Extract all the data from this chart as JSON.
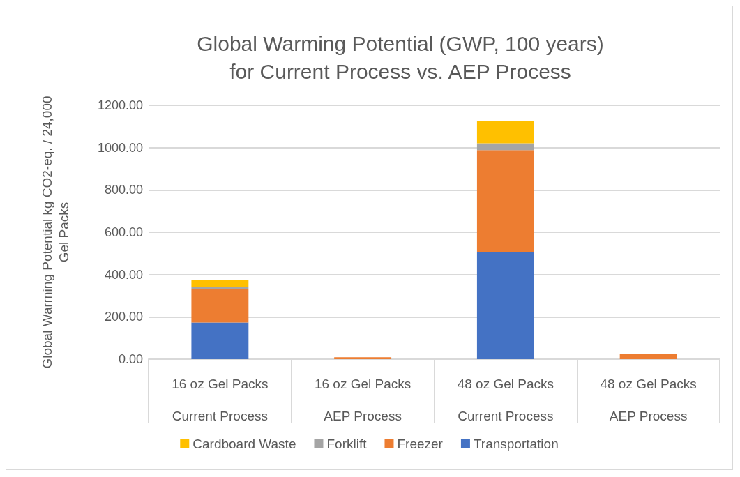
{
  "chart_data": {
    "type": "bar",
    "title": "Global Warming Potential (GWP, 100 years)\nfor Current Process vs. AEP Process",
    "ylabel": "Global Warming Potential kg CO2-eq. / 24,000\nGel Packs",
    "categories": [
      "16 oz Gel Packs\nCurrent Process",
      "16 oz Gel Packs\nAEP Process",
      "48 oz Gel Packs\nCurrent Process",
      "48 oz Gel Packs\nAEP Process"
    ],
    "stacked": true,
    "series": [
      {
        "name": "Transportation",
        "color": "#4472c4",
        "values": [
          173,
          0,
          508,
          0
        ]
      },
      {
        "name": "Freezer",
        "color": "#ed7d31",
        "values": [
          158,
          9,
          480,
          26
        ]
      },
      {
        "name": "Forklift",
        "color": "#a5a5a5",
        "values": [
          11,
          0,
          32,
          0
        ]
      },
      {
        "name": "Cardboard Waste",
        "color": "#ffc000",
        "values": [
          31,
          null,
          107,
          null
        ]
      }
    ],
    "ylim": [
      0,
      1200
    ],
    "yticks": [
      {
        "value": 0,
        "label": "0.00"
      },
      {
        "value": 200,
        "label": "200.00"
      },
      {
        "value": 400,
        "label": "400.00"
      },
      {
        "value": 600,
        "label": "600.00"
      },
      {
        "value": 800,
        "label": "800.00"
      },
      {
        "value": 1000,
        "label": "1000.00"
      },
      {
        "value": 1200,
        "label": "1200.00"
      }
    ],
    "grid": "y",
    "legend": "bottom"
  }
}
